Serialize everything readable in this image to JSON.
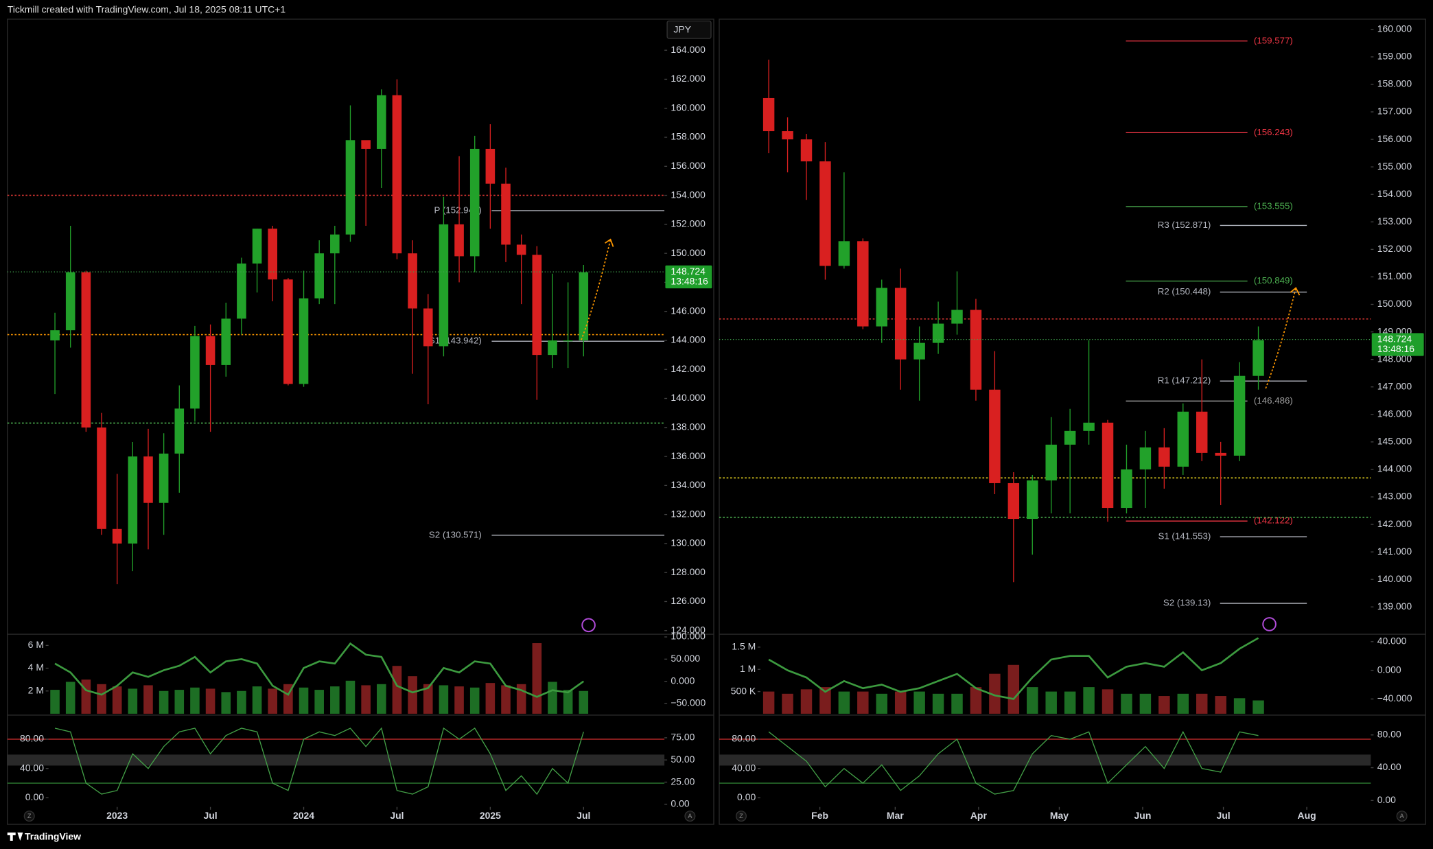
{
  "ui": {
    "header": "Tickmill created with TradingView.com, Jul 18, 2025 08:11 UTC+1",
    "footer": "TradingView"
  },
  "chart_data": [
    {
      "type": "candlestick",
      "currency": "JPY",
      "corner_labels": [
        "Z",
        "A"
      ],
      "x": [
        -4,
        -3,
        -2,
        -1,
        0,
        1,
        2,
        3,
        4,
        5,
        6,
        7,
        8,
        9,
        10,
        11,
        12,
        13,
        14,
        15,
        16,
        17,
        18,
        19,
        20,
        21,
        22,
        23,
        24,
        25,
        26,
        27,
        28,
        29,
        30
      ],
      "open": [
        144,
        144.7,
        148.7,
        138,
        131,
        130,
        136,
        132.8,
        136.2,
        139.3,
        144.3,
        142.3,
        145.5,
        149.3,
        151.7,
        148.2,
        141,
        146.9,
        150,
        151.3,
        157.8,
        157.2,
        160.9,
        150,
        146.2,
        143.6,
        152,
        149.8,
        157.2,
        154.8,
        150.6,
        149.9,
        143,
        144,
        144
      ],
      "high": [
        145.9,
        151.9,
        148.8,
        139,
        134.8,
        137,
        137.9,
        137.6,
        140.9,
        145,
        145.1,
        146.6,
        149.7,
        151.7,
        151.9,
        148.3,
        148.8,
        150.9,
        151.9,
        160.2,
        157.7,
        161.3,
        162,
        150.9,
        147.2,
        153.9,
        156.7,
        158.1,
        158.9,
        155.9,
        151.3,
        150.5,
        148.6,
        148,
        149.2
      ],
      "low": [
        140.3,
        143.5,
        137.7,
        130.6,
        127.2,
        128.1,
        129.6,
        130.6,
        133.5,
        138.4,
        137.7,
        141.5,
        144.4,
        147.3,
        146.7,
        140.9,
        140.8,
        146.5,
        146.5,
        150.8,
        151.9,
        154.5,
        149.6,
        141.7,
        139.6,
        142.9,
        148,
        148.7,
        151.7,
        149.4,
        146.5,
        139.9,
        142.1,
        142.1,
        142.9
      ],
      "close": [
        144.7,
        148.7,
        138,
        131,
        130,
        136,
        132.8,
        136.2,
        139.3,
        144.3,
        142.3,
        145.5,
        149.3,
        151.7,
        148.2,
        141,
        146.9,
        150,
        151.3,
        157.8,
        157.2,
        160.9,
        150,
        146.2,
        143.6,
        152,
        149.8,
        157.2,
        154.8,
        150.6,
        149.9,
        143,
        144,
        144,
        148.7
      ],
      "xlim": [
        -7.06,
        35.2
      ],
      "xticks": [
        {
          "value": 0,
          "label": "2023"
        },
        {
          "value": 6,
          "label": "Jul"
        },
        {
          "value": 12,
          "label": "2024"
        },
        {
          "value": 18,
          "label": "Jul"
        },
        {
          "value": 24,
          "label": "2025"
        },
        {
          "value": 30,
          "label": "Jul"
        }
      ],
      "ylim": [
        123.81,
        166.14
      ],
      "yticks": [
        {
          "value": 124,
          "label": "124.000"
        },
        {
          "value": 126,
          "label": "126.000"
        },
        {
          "value": 128,
          "label": "128.000"
        },
        {
          "value": 130,
          "label": "130.000"
        },
        {
          "value": 132,
          "label": "132.000"
        },
        {
          "value": 134,
          "label": "134.000"
        },
        {
          "value": 136,
          "label": "136.000"
        },
        {
          "value": 138,
          "label": "138.000"
        },
        {
          "value": 140,
          "label": "140.000"
        },
        {
          "value": 142,
          "label": "142.000"
        },
        {
          "value": 144,
          "label": "144.000"
        },
        {
          "value": 146,
          "label": "146.000"
        },
        {
          "value": 148,
          "label": "148.000"
        },
        {
          "value": 150,
          "label": "150.000"
        },
        {
          "value": 152,
          "label": "152.000"
        },
        {
          "value": 154,
          "label": "154.000"
        },
        {
          "value": 156,
          "label": "156.000"
        },
        {
          "value": 158,
          "label": "158.000"
        },
        {
          "value": 160,
          "label": "160.000"
        },
        {
          "value": 162,
          "label": "162.000"
        },
        {
          "value": 164,
          "label": "164.000"
        }
      ],
      "price_tag": {
        "value": 148.724,
        "countdown": "13:48:16"
      },
      "levels": [
        {
          "label": "P (152.946)",
          "value": 152.946,
          "color": "#b2b5be",
          "style": "solid"
        },
        {
          "label": "S1 (143.942)",
          "value": 143.942,
          "color": "#b2b5be",
          "style": "solid"
        },
        {
          "label": "S2 (130.571)",
          "value": 130.571,
          "color": "#b2b5be",
          "style": "solid"
        },
        {
          "value": 154,
          "color": "#e53935",
          "style": "dotted"
        },
        {
          "value": 144.4,
          "color": "#ff9800",
          "style": "dotted"
        },
        {
          "value": 138.3,
          "color": "#4caf50",
          "style": "dotted"
        }
      ],
      "volume": {
        "values": [
          2.1,
          2.8,
          3.0,
          2.6,
          2.4,
          2.2,
          2.5,
          2.0,
          2.1,
          2.3,
          2.2,
          1.9,
          2.0,
          2.4,
          2.2,
          2.6,
          2.3,
          2.1,
          2.4,
          2.9,
          2.5,
          2.6,
          4.2,
          3.3,
          2.6,
          2.5,
          2.4,
          2.3,
          2.7,
          2.5,
          2.6,
          6.2,
          2.8,
          2.1,
          2.0
        ],
        "ylim": [
          0,
          6.9
        ],
        "yticks": [
          {
            "value": 2,
            "label": "2 M"
          },
          {
            "value": 4,
            "label": "4 M"
          },
          {
            "value": 6,
            "label": "6 M"
          }
        ],
        "line": {
          "values": [
            40,
            20,
            -20,
            -30,
            -10,
            20,
            10,
            25,
            35,
            55,
            20,
            45,
            50,
            40,
            -10,
            -30,
            30,
            45,
            40,
            85,
            60,
            55,
            -10,
            -25,
            -15,
            30,
            20,
            45,
            40,
            -10,
            -20,
            -35,
            -20,
            -25,
            0
          ],
          "y2lim": [
            -73,
            104
          ],
          "y2ticks": [
            {
              "value": -50,
              "label": "−50.000"
            },
            {
              "value": 0,
              "label": "0.000"
            },
            {
              "value": 50,
              "label": "50.000"
            },
            {
              "value": 100,
              "label": "100.000"
            }
          ]
        }
      },
      "oscillator": {
        "values": [
          95,
          90,
          20,
          5,
          10,
          60,
          40,
          70,
          90,
          95,
          60,
          85,
          95,
          90,
          20,
          10,
          80,
          90,
          85,
          95,
          70,
          95,
          10,
          5,
          15,
          95,
          80,
          95,
          60,
          10,
          30,
          5,
          40,
          20,
          90
        ],
        "ylim": [
          -12.5,
          111
        ],
        "yticks": [
          {
            "value": 0,
            "label": "0.00"
          },
          {
            "value": 40,
            "label": "40.00"
          },
          {
            "value": 80,
            "label": "80.00"
          }
        ],
        "y2lim": [
          -3,
          99
        ],
        "y2ticks": [
          {
            "value": 0,
            "label": "0.00"
          },
          {
            "value": 25,
            "label": "25.00"
          },
          {
            "value": 50,
            "label": "50.00"
          },
          {
            "value": 75,
            "label": "75.00"
          }
        ],
        "upper": 80,
        "lower": 20,
        "band": [
          44,
          59
        ]
      }
    },
    {
      "type": "candlestick",
      "corner_labels": [
        "Z",
        "A"
      ],
      "x": [
        13,
        20,
        27,
        34,
        41,
        48,
        55,
        62,
        69,
        76,
        83,
        90,
        97,
        104,
        111,
        118,
        125,
        132,
        139,
        146,
        153,
        160,
        167,
        174,
        181,
        188,
        195
      ],
      "open": [
        157.5,
        156.3,
        156,
        155.2,
        151.4,
        152.3,
        149.2,
        150.6,
        148,
        148.6,
        149.3,
        149.8,
        146.9,
        143.5,
        142.2,
        143.6,
        144.9,
        145.4,
        145.7,
        142.6,
        144,
        144.8,
        144.1,
        146.1,
        144.6,
        144.5,
        147.4
      ],
      "high": [
        158.9,
        156.8,
        156.2,
        155.9,
        154.8,
        152.4,
        150.9,
        151.3,
        149.2,
        150.1,
        151.2,
        150.2,
        148.3,
        143.9,
        143.8,
        145.9,
        146.2,
        148.7,
        145.8,
        144.9,
        145.4,
        145.5,
        146.4,
        148,
        145,
        147.9,
        149.2
      ],
      "low": [
        155.5,
        154.8,
        153.8,
        150.9,
        151.3,
        149.1,
        148.6,
        146.9,
        146.5,
        148.2,
        148.9,
        146.5,
        143.1,
        139.9,
        140.9,
        142.4,
        142.4,
        144.9,
        142.1,
        142.4,
        142.6,
        143.3,
        143.8,
        144.3,
        142.7,
        144.3,
        146.9
      ],
      "close": [
        156.3,
        156,
        155.2,
        151.4,
        152.3,
        149.2,
        150.6,
        148,
        148.6,
        149.3,
        149.8,
        146.9,
        143.5,
        142.2,
        143.6,
        144.9,
        145.4,
        145.7,
        142.6,
        144,
        144.8,
        144.1,
        146.1,
        144.6,
        144.5,
        147.4,
        148.7
      ],
      "xlim": [
        -5.4,
        236.8
      ],
      "xticks": [
        {
          "value": 32,
          "label": "Feb"
        },
        {
          "value": 60,
          "label": "Mar"
        },
        {
          "value": 91,
          "label": "Apr"
        },
        {
          "value": 121,
          "label": "May"
        },
        {
          "value": 152,
          "label": "Jun"
        },
        {
          "value": 182,
          "label": "Jul"
        },
        {
          "value": 213,
          "label": "Aug"
        }
      ],
      "ylim": [
        138.04,
        160.37
      ],
      "yticks": [
        {
          "value": 139,
          "label": "139.000"
        },
        {
          "value": 140,
          "label": "140.000"
        },
        {
          "value": 141,
          "label": "141.000"
        },
        {
          "value": 142,
          "label": "142.000"
        },
        {
          "value": 143,
          "label": "143.000"
        },
        {
          "value": 144,
          "label": "144.000"
        },
        {
          "value": 145,
          "label": "145.000"
        },
        {
          "value": 146,
          "label": "146.000"
        },
        {
          "value": 147,
          "label": "147.000"
        },
        {
          "value": 148,
          "label": "148.000"
        },
        {
          "value": 149,
          "label": "149.000"
        },
        {
          "value": 150,
          "label": "150.000"
        },
        {
          "value": 151,
          "label": "151.000"
        },
        {
          "value": 152,
          "label": "152.000"
        },
        {
          "value": 153,
          "label": "153.000"
        },
        {
          "value": 154,
          "label": "154.000"
        },
        {
          "value": 155,
          "label": "155.000"
        },
        {
          "value": 156,
          "label": "156.000"
        },
        {
          "value": 157,
          "label": "157.000"
        },
        {
          "value": 158,
          "label": "158.000"
        },
        {
          "value": 159,
          "label": "159.000"
        },
        {
          "value": 160,
          "label": "160.000"
        }
      ],
      "price_tag": {
        "value": 148.724,
        "countdown": "13:48:16"
      },
      "levels": [
        {
          "label": "(159.577)",
          "value": 159.577,
          "color": "#f23645",
          "style": "solid"
        },
        {
          "label": "(156.243)",
          "value": 156.243,
          "color": "#f23645",
          "style": "solid"
        },
        {
          "label": "(153.555)",
          "value": 153.555,
          "color": "#4caf50",
          "style": "solid"
        },
        {
          "label": "R3 (152.871)",
          "value": 152.871,
          "color": "#b2b5be",
          "style": "solid"
        },
        {
          "label": "(150.849)",
          "value": 150.849,
          "color": "#4caf50",
          "style": "solid"
        },
        {
          "label": "R2 (150.448)",
          "value": 150.448,
          "color": "#b2b5be",
          "style": "solid"
        },
        {
          "label": "R1 (147.212)",
          "value": 147.212,
          "color": "#b2b5be",
          "style": "solid"
        },
        {
          "label": "(146.486)",
          "value": 146.486,
          "color": "#9e9e9e",
          "style": "solid"
        },
        {
          "label": "(142.122)",
          "value": 142.122,
          "color": "#f23645",
          "style": "solid"
        },
        {
          "label": "S1 (141.553)",
          "value": 141.553,
          "color": "#b2b5be",
          "style": "solid"
        },
        {
          "label": "S2 (139.13)",
          "value": 139.13,
          "color": "#b2b5be",
          "style": "solid"
        },
        {
          "value": 149.47,
          "color": "#e53935",
          "style": "dotted"
        },
        {
          "value": 143.69,
          "color": "#e6d31f",
          "style": "dotted"
        },
        {
          "value": 142.26,
          "color": "#4caf50",
          "style": "dotted"
        }
      ],
      "volume": {
        "values": [
          0.5,
          0.45,
          0.55,
          0.6,
          0.5,
          0.5,
          0.45,
          0.5,
          0.5,
          0.45,
          0.45,
          0.6,
          0.9,
          1.1,
          0.6,
          0.5,
          0.5,
          0.6,
          0.55,
          0.45,
          0.45,
          0.4,
          0.45,
          0.45,
          0.4,
          0.35,
          0.3
        ],
        "ylim": [
          0,
          1.77
        ],
        "yticks": [
          {
            "value": 0.5,
            "label": "500 K"
          },
          {
            "value": 1,
            "label": "1 M"
          },
          {
            "value": 1.5,
            "label": "1.5 M"
          }
        ],
        "line": {
          "values": [
            15,
            0,
            -10,
            -30,
            -15,
            -25,
            -20,
            -30,
            -25,
            -15,
            -5,
            -25,
            -35,
            -40,
            -10,
            15,
            20,
            20,
            -10,
            5,
            10,
            5,
            25,
            0,
            10,
            30,
            45
          ],
          "y2lim": [
            -60.6,
            49
          ],
          "y2ticks": [
            {
              "value": -40,
              "label": "−40.000"
            },
            {
              "value": 0,
              "label": "0.000"
            },
            {
              "value": 40,
              "label": "40.000"
            }
          ]
        }
      },
      "oscillator": {
        "values": [
          90,
          70,
          50,
          15,
          40,
          20,
          45,
          10,
          30,
          60,
          80,
          20,
          5,
          10,
          60,
          85,
          80,
          90,
          20,
          45,
          70,
          40,
          90,
          40,
          35,
          90,
          85
        ],
        "ylim": [
          -12.5,
          111
        ],
        "yticks": [
          {
            "value": 0,
            "label": "0.00"
          },
          {
            "value": 40,
            "label": "40.00"
          },
          {
            "value": 80,
            "label": "80.00"
          }
        ],
        "y2lim": [
          -7.9,
          102.5
        ],
        "y2ticks": [
          {
            "value": 0,
            "label": "0.00"
          },
          {
            "value": 40,
            "label": "40.00"
          },
          {
            "value": 80,
            "label": "80.00"
          }
        ],
        "upper": 80,
        "lower": 20,
        "band": [
          44,
          59
        ]
      }
    }
  ]
}
